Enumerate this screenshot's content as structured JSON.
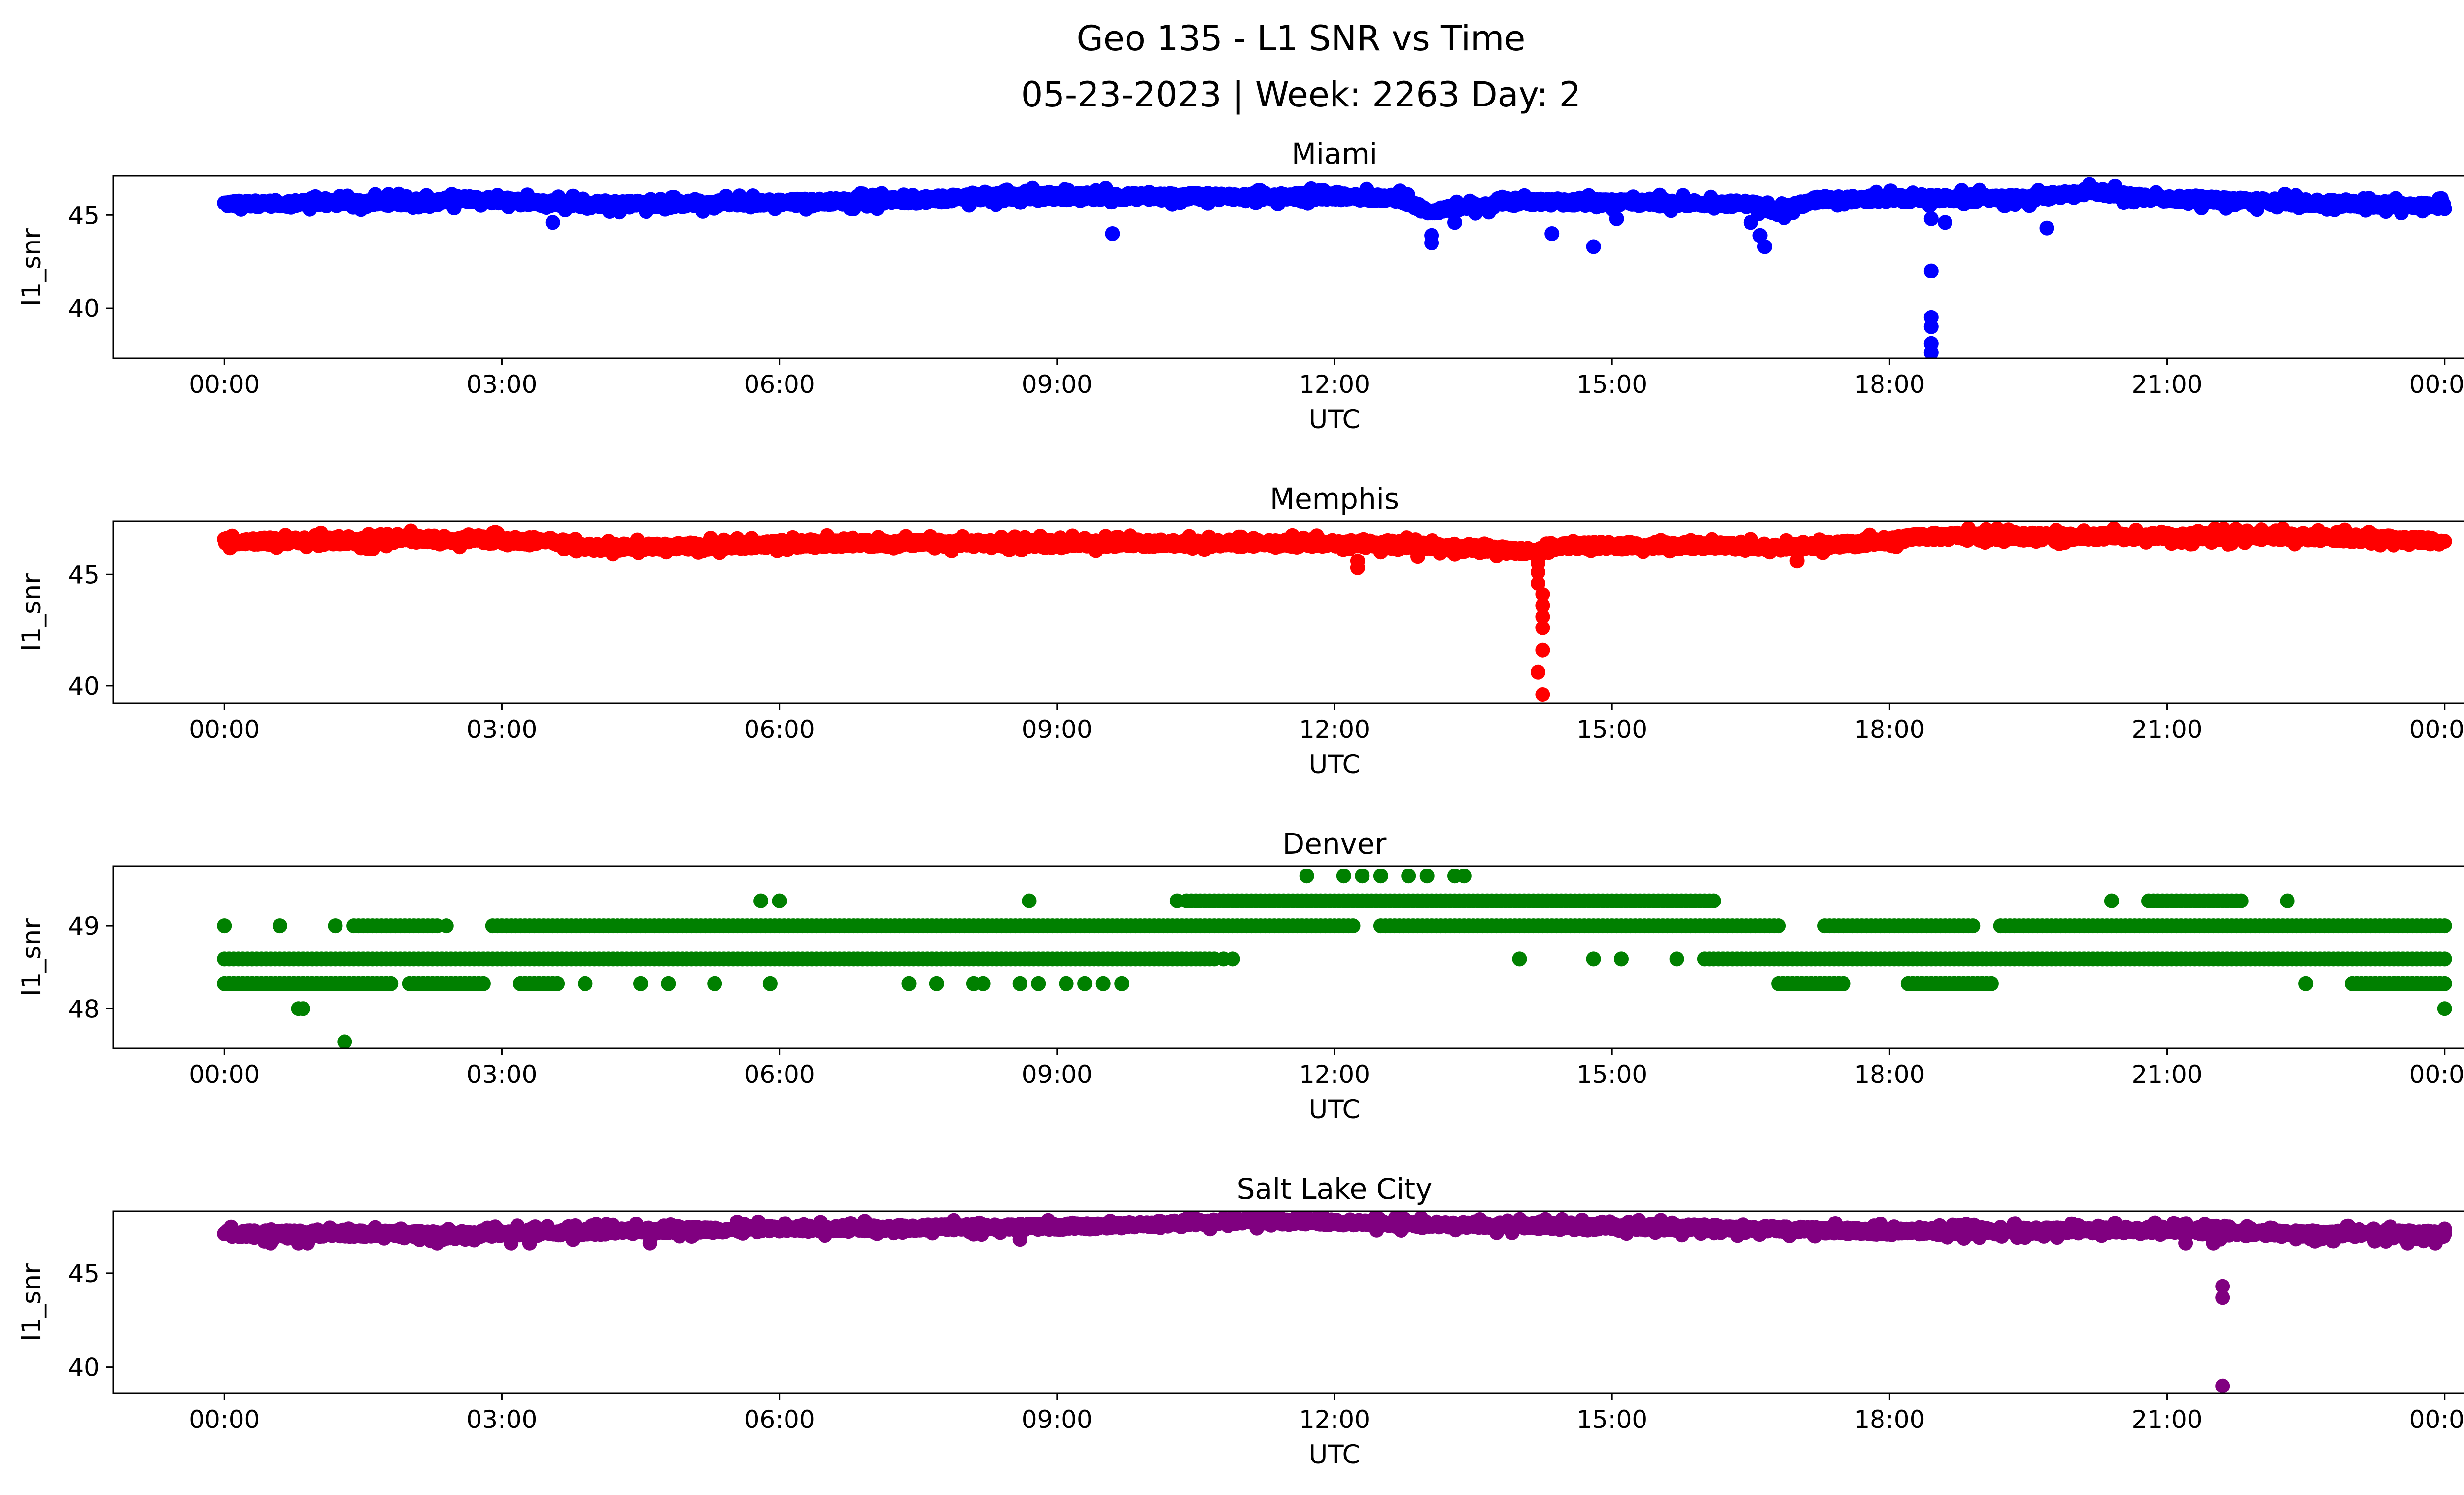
{
  "figure": {
    "title_line1": "Geo 135 - L1 SNR vs Time",
    "title_line2": "05-23-2023 | Week: 2263 Day: 2"
  },
  "chart_data": [
    {
      "type": "scatter",
      "title": "Miami",
      "xlabel": "UTC",
      "ylabel": "l1_snr",
      "color": "#0000ff",
      "x_unit": "hours UTC on 05-23-2023",
      "x_ticks": [
        0,
        3,
        6,
        9,
        12,
        15,
        18,
        21,
        24
      ],
      "x_tick_labels": [
        "00:00",
        "03:00",
        "06:00",
        "09:00",
        "12:00",
        "15:00",
        "18:00",
        "21:00",
        "00:00"
      ],
      "xlim": [
        -1.2,
        25.2
      ],
      "y_ticks": [
        40,
        45
      ],
      "ylim": [
        37.3,
        47.1
      ],
      "baseline": [
        [
          0,
          45.6
        ],
        [
          2.3,
          45.7
        ],
        [
          2.6,
          45.9
        ],
        [
          3.5,
          45.6
        ],
        [
          5.0,
          45.6
        ],
        [
          7.5,
          45.8
        ],
        [
          8.2,
          46.0
        ],
        [
          12.0,
          46.0
        ],
        [
          12.7,
          45.9
        ],
        [
          13.0,
          45.2
        ],
        [
          13.6,
          45.5
        ],
        [
          14.1,
          45.7
        ],
        [
          16.5,
          45.6
        ],
        [
          16.8,
          45.2
        ],
        [
          17.2,
          45.8
        ],
        [
          18.0,
          45.9
        ],
        [
          19.5,
          45.9
        ],
        [
          20.2,
          46.3
        ],
        [
          20.6,
          46.0
        ],
        [
          21.5,
          45.8
        ],
        [
          23.0,
          45.6
        ],
        [
          24,
          45.5
        ]
      ],
      "jitter": 0.45,
      "spread": 0.35,
      "outliers": [
        [
          3.55,
          44.6
        ],
        [
          9.6,
          44.0
        ],
        [
          13.05,
          43.9
        ],
        [
          13.05,
          43.5
        ],
        [
          13.3,
          44.6
        ],
        [
          14.35,
          44.0
        ],
        [
          14.8,
          43.3
        ],
        [
          16.5,
          44.6
        ],
        [
          16.6,
          43.9
        ],
        [
          16.65,
          43.3
        ],
        [
          18.45,
          42.0
        ],
        [
          18.45,
          39.5
        ],
        [
          18.45,
          39.0
        ],
        [
          18.45,
          38.1
        ],
        [
          18.45,
          37.6
        ],
        [
          18.45,
          44.8
        ],
        [
          18.6,
          44.6
        ],
        [
          19.7,
          44.3
        ],
        [
          15.05,
          44.8
        ]
      ]
    },
    {
      "type": "scatter",
      "title": "Memphis",
      "xlabel": "UTC",
      "ylabel": "l1_snr",
      "color": "#ff0000",
      "x_unit": "hours UTC on 05-23-2023",
      "x_ticks": [
        0,
        3,
        6,
        9,
        12,
        15,
        18,
        21,
        24
      ],
      "x_tick_labels": [
        "00:00",
        "03:00",
        "06:00",
        "09:00",
        "12:00",
        "15:00",
        "18:00",
        "21:00",
        "00:00"
      ],
      "xlim": [
        -1.2,
        25.2
      ],
      "y_ticks": [
        40,
        45
      ],
      "ylim": [
        39.2,
        47.4
      ],
      "baseline": [
        [
          0,
          46.5
        ],
        [
          1.6,
          46.5
        ],
        [
          2.0,
          46.6
        ],
        [
          3.5,
          46.5
        ],
        [
          4.0,
          46.2
        ],
        [
          5.5,
          46.3
        ],
        [
          6.5,
          46.4
        ],
        [
          12.5,
          46.4
        ],
        [
          13.5,
          46.2
        ],
        [
          14.2,
          46.0
        ],
        [
          14.5,
          46.3
        ],
        [
          16.0,
          46.3
        ],
        [
          17.0,
          46.2
        ],
        [
          18.0,
          46.5
        ],
        [
          18.3,
          46.7
        ],
        [
          22.5,
          46.7
        ],
        [
          24,
          46.5
        ]
      ],
      "jitter": 0.35,
      "spread": 0.3,
      "outliers": [
        [
          12.25,
          45.6
        ],
        [
          12.25,
          45.3
        ],
        [
          12.9,
          45.8
        ],
        [
          13.3,
          45.9
        ],
        [
          14.2,
          45.5
        ],
        [
          14.2,
          45.1
        ],
        [
          14.2,
          44.6
        ],
        [
          14.25,
          44.1
        ],
        [
          14.25,
          43.6
        ],
        [
          14.25,
          43.1
        ],
        [
          14.25,
          42.6
        ],
        [
          14.25,
          41.6
        ],
        [
          14.2,
          40.6
        ],
        [
          14.25,
          39.6
        ],
        [
          17.0,
          45.6
        ],
        [
          12.5,
          46.0
        ]
      ]
    },
    {
      "type": "scatter",
      "title": "Denver",
      "xlabel": "UTC",
      "ylabel": "l1_snr",
      "color": "#008000",
      "x_unit": "hours UTC on 05-23-2023",
      "x_ticks": [
        0,
        3,
        6,
        9,
        12,
        15,
        18,
        21,
        24
      ],
      "x_tick_labels": [
        "00:00",
        "03:00",
        "06:00",
        "09:00",
        "12:00",
        "15:00",
        "18:00",
        "21:00",
        "00:00"
      ],
      "xlim": [
        -1.2,
        25.2
      ],
      "y_ticks": [
        48,
        49
      ],
      "ylim": [
        47.52,
        49.72
      ],
      "levels": [
        48.3,
        48.6,
        49.0,
        49.3
      ],
      "bands": [
        {
          "y": 48.6,
          "from": 0,
          "to": 10.7
        },
        {
          "y": 48.3,
          "from": 0,
          "to": 1.8
        },
        {
          "y": 48.3,
          "from": 2.0,
          "to": 2.8
        },
        {
          "y": 48.3,
          "from": 3.2,
          "to": 3.6
        },
        {
          "y": 49.0,
          "from": 1.4,
          "to": 2.3
        },
        {
          "y": 49.0,
          "from": 2.9,
          "to": 12.2
        },
        {
          "y": 49.3,
          "from": 10.4,
          "to": 16.1
        },
        {
          "y": 49.0,
          "from": 12.5,
          "to": 16.8
        },
        {
          "y": 48.6,
          "from": 16.0,
          "to": 24.0
        },
        {
          "y": 48.3,
          "from": 16.8,
          "to": 17.5
        },
        {
          "y": 48.3,
          "from": 18.2,
          "to": 19.1
        },
        {
          "y": 49.0,
          "from": 17.3,
          "to": 18.9
        },
        {
          "y": 49.0,
          "from": 19.2,
          "to": 24.0
        },
        {
          "y": 49.3,
          "from": 20.8,
          "to": 21.8
        },
        {
          "y": 48.3,
          "from": 23.0,
          "to": 24.0
        }
      ],
      "scatter_points": [
        [
          0,
          49.0
        ],
        [
          0.6,
          49.0
        ],
        [
          1.2,
          49.0
        ],
        [
          0.85,
          48.0
        ],
        [
          0.8,
          48.0
        ],
        [
          1.3,
          47.6
        ],
        [
          2.4,
          49.0
        ],
        [
          3.9,
          48.3
        ],
        [
          4.5,
          48.3
        ],
        [
          4.8,
          48.3
        ],
        [
          5.3,
          48.3
        ],
        [
          5.9,
          48.3
        ],
        [
          5.8,
          49.3
        ],
        [
          6.0,
          49.3
        ],
        [
          7.4,
          48.3
        ],
        [
          7.7,
          48.3
        ],
        [
          8.1,
          48.3
        ],
        [
          8.2,
          48.3
        ],
        [
          8.6,
          48.3
        ],
        [
          8.7,
          49.3
        ],
        [
          8.8,
          48.3
        ],
        [
          9.1,
          48.3
        ],
        [
          9.3,
          48.3
        ],
        [
          9.5,
          48.3
        ],
        [
          9.7,
          48.3
        ],
        [
          10.3,
          49.3
        ],
        [
          10.8,
          48.6
        ],
        [
          10.9,
          48.6
        ],
        [
          11.7,
          49.6
        ],
        [
          12.1,
          49.6
        ],
        [
          12.3,
          49.6
        ],
        [
          12.5,
          49.6
        ],
        [
          12.8,
          49.6
        ],
        [
          13.0,
          49.6
        ],
        [
          13.3,
          49.6
        ],
        [
          13.4,
          49.6
        ],
        [
          14.0,
          48.6
        ],
        [
          14.8,
          48.6
        ],
        [
          15.1,
          48.6
        ],
        [
          15.7,
          48.6
        ],
        [
          19.0,
          48.3
        ],
        [
          20.4,
          49.3
        ],
        [
          22.3,
          49.3
        ],
        [
          22.5,
          48.3
        ],
        [
          24.0,
          48.0
        ]
      ],
      "jitter": 0.3,
      "spread": 0
    },
    {
      "type": "scatter",
      "title": "Salt Lake City",
      "xlabel": "UTC",
      "ylabel": "l1_snr",
      "color": "#800080",
      "x_unit": "hours UTC on 05-23-2023",
      "x_ticks": [
        0,
        3,
        6,
        9,
        12,
        15,
        18,
        21,
        24
      ],
      "x_tick_labels": [
        "00:00",
        "03:00",
        "06:00",
        "09:00",
        "12:00",
        "15:00",
        "18:00",
        "21:00",
        "00:00"
      ],
      "xlim": [
        -1.2,
        25.2
      ],
      "y_ticks": [
        40,
        45
      ],
      "ylim": [
        38.6,
        48.3
      ],
      "baseline": [
        [
          0,
          47.1
        ],
        [
          3.0,
          47.1
        ],
        [
          5.0,
          47.3
        ],
        [
          9.5,
          47.5
        ],
        [
          11.0,
          47.8
        ],
        [
          13.0,
          47.6
        ],
        [
          16.0,
          47.4
        ],
        [
          18.0,
          47.2
        ],
        [
          21.0,
          47.3
        ],
        [
          22.0,
          47.1
        ],
        [
          24,
          47.1
        ]
      ],
      "jitter": 0.4,
      "spread": 0.3,
      "outliers": [
        [
          0.5,
          46.6
        ],
        [
          0.8,
          46.6
        ],
        [
          0.9,
          46.6
        ],
        [
          2.3,
          46.6
        ],
        [
          3.1,
          46.6
        ],
        [
          3.3,
          46.6
        ],
        [
          4.6,
          46.6
        ],
        [
          8.6,
          46.8
        ],
        [
          21.6,
          44.3
        ],
        [
          21.6,
          43.7
        ],
        [
          21.6,
          39.0
        ],
        [
          21.5,
          46.6
        ],
        [
          23.6,
          46.6
        ],
        [
          23.9,
          46.6
        ],
        [
          21.2,
          46.6
        ]
      ]
    }
  ]
}
